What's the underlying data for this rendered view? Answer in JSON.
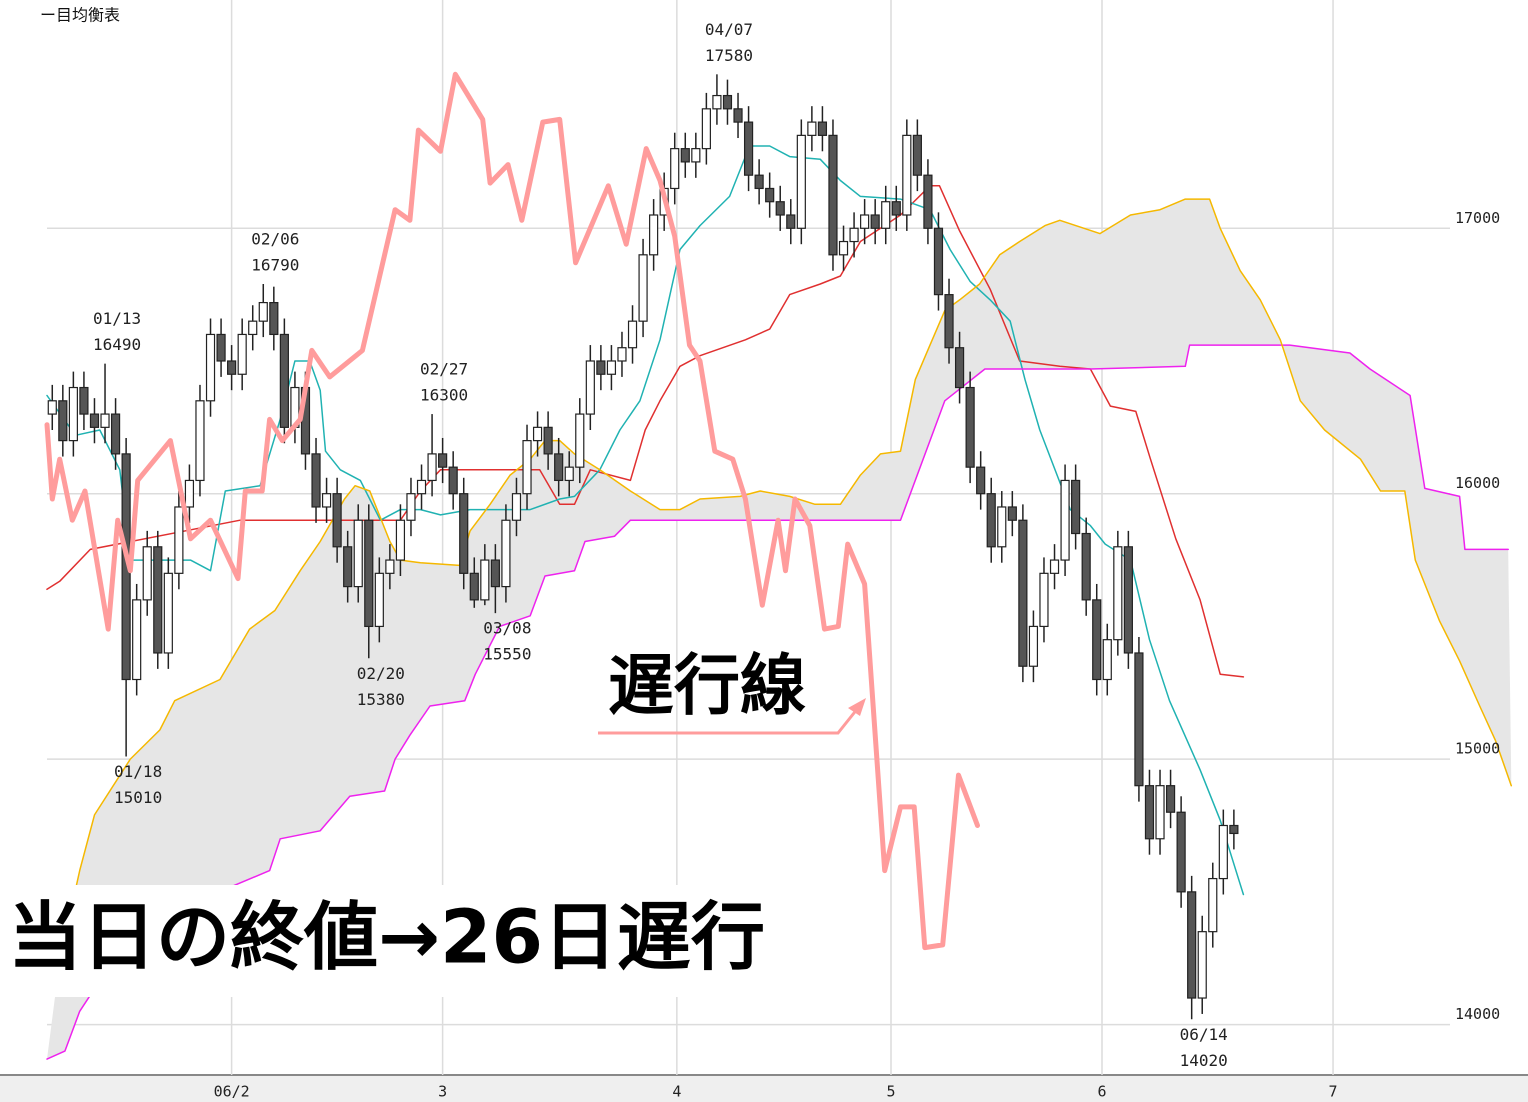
{
  "chart_data": {
    "type": "candlestick",
    "title": "ー目均衡表",
    "caption": "当日の終値→26日遅行",
    "lagging_label": "遅行線",
    "xlim": [
      0,
      140
    ],
    "ylim": [
      13810,
      17860
    ],
    "xticks": [
      {
        "value": 17.5,
        "label": "06/2"
      },
      {
        "value": 37.5,
        "label": "3"
      },
      {
        "value": 59.7,
        "label": "4"
      },
      {
        "value": 80,
        "label": "5"
      },
      {
        "value": 100,
        "label": "6"
      },
      {
        "value": 121.9,
        "label": "7"
      }
    ],
    "yticks": [
      14000,
      15000,
      16000,
      17000
    ],
    "grid": true,
    "up_color": "#ffffff",
    "down_color": "#555555",
    "wick_color": "#222222",
    "cloud_color": "#e6e6e6",
    "candles": {
      "open": [
        16300,
        16350,
        16200,
        16400,
        16300,
        16250,
        16300,
        16150,
        15300,
        15600,
        15800,
        15400,
        15700,
        15950,
        16050,
        16350,
        16600,
        16500,
        16450,
        16600,
        16650,
        16720,
        16600,
        16250,
        16400,
        16150,
        15950,
        16000,
        15800,
        15650,
        15900,
        15500,
        15700,
        15750,
        15900,
        16000,
        16050,
        16150,
        16100,
        16000,
        15700,
        15600,
        15750,
        15650,
        15900,
        16000,
        16200,
        16250,
        16150,
        16050,
        16100,
        16300,
        16500,
        16450,
        16500,
        16550,
        16650,
        16900,
        17050,
        17150,
        17300,
        17250,
        17300,
        17450,
        17500,
        17450,
        17400,
        17200,
        17150,
        17100,
        17050,
        17000,
        17350,
        17400,
        17350,
        16900,
        16950,
        17000,
        17050,
        17000,
        17100,
        17050,
        17350,
        17200,
        17000,
        16750,
        16550,
        16400,
        16100,
        16000,
        15800,
        15950,
        15900,
        15350,
        15500,
        15700,
        15750,
        16050,
        15850,
        15600,
        15300,
        15450,
        15800,
        15400,
        14900,
        14700,
        14900,
        14800,
        14500,
        14100,
        14350,
        14550,
        14750
      ],
      "high": [
        16410,
        16410,
        16460,
        16460,
        16360,
        16490,
        16360,
        16210,
        15660,
        15860,
        15860,
        15760,
        16010,
        16110,
        16410,
        16660,
        16660,
        16560,
        16660,
        16710,
        16790,
        16780,
        16660,
        16460,
        16460,
        16210,
        16060,
        16060,
        15860,
        15960,
        15960,
        15760,
        15810,
        15960,
        16060,
        16110,
        16300,
        16210,
        16160,
        16060,
        15760,
        15810,
        15810,
        15960,
        16060,
        16260,
        16310,
        16310,
        16210,
        16160,
        16360,
        16560,
        16560,
        16560,
        16610,
        16710,
        16960,
        17110,
        17210,
        17360,
        17360,
        17360,
        17510,
        17580,
        17560,
        17510,
        17460,
        17260,
        17210,
        17160,
        17110,
        17410,
        17460,
        17460,
        17410,
        17010,
        17060,
        17110,
        17110,
        17160,
        17160,
        17410,
        17410,
        17260,
        17060,
        16810,
        16610,
        16460,
        16160,
        16060,
        16010,
        16010,
        15960,
        15560,
        15760,
        15810,
        16110,
        16110,
        15910,
        15660,
        15510,
        15860,
        15860,
        15460,
        14960,
        14960,
        14960,
        14860,
        14560,
        14410,
        14610,
        14810,
        14810
      ],
      "low": [
        16240,
        16140,
        16140,
        16240,
        16190,
        16190,
        16090,
        15010,
        15240,
        15540,
        15340,
        15340,
        15640,
        15890,
        15990,
        16290,
        16440,
        16390,
        16390,
        16540,
        16590,
        16540,
        16190,
        16190,
        16090,
        15890,
        15890,
        15740,
        15590,
        15590,
        15380,
        15440,
        15640,
        15690,
        15840,
        15940,
        15990,
        16040,
        15940,
        15640,
        15570,
        15580,
        15550,
        15590,
        15840,
        15940,
        16140,
        16090,
        15990,
        15990,
        16040,
        16240,
        16390,
        16390,
        16440,
        16490,
        16590,
        16840,
        16990,
        17090,
        17190,
        17190,
        17240,
        17390,
        17390,
        17340,
        17140,
        17090,
        17040,
        16990,
        16940,
        16940,
        17290,
        17290,
        16840,
        16840,
        16890,
        16940,
        16940,
        16940,
        16990,
        16990,
        17140,
        16940,
        16690,
        16490,
        16340,
        16040,
        15940,
        15740,
        15740,
        15840,
        15290,
        15290,
        15440,
        15640,
        15690,
        15790,
        15540,
        15240,
        15240,
        15390,
        15340,
        14840,
        14640,
        14640,
        14740,
        14440,
        14020,
        14040,
        14290,
        14490,
        14660
      ],
      "close": [
        16350,
        16200,
        16400,
        16300,
        16250,
        16300,
        16150,
        15300,
        15600,
        15800,
        15400,
        15700,
        15950,
        16050,
        16350,
        16600,
        16500,
        16450,
        16600,
        16650,
        16720,
        16600,
        16250,
        16400,
        16150,
        15950,
        16000,
        15800,
        15650,
        15900,
        15500,
        15700,
        15750,
        15900,
        16000,
        16050,
        16150,
        16100,
        16000,
        15700,
        15600,
        15750,
        15650,
        15900,
        16000,
        16200,
        16250,
        16150,
        16050,
        16100,
        16300,
        16500,
        16450,
        16500,
        16550,
        16650,
        16900,
        17050,
        17150,
        17300,
        17250,
        17300,
        17450,
        17500,
        17450,
        17400,
        17200,
        17150,
        17100,
        17050,
        17000,
        17350,
        17400,
        17350,
        16900,
        16950,
        17000,
        17050,
        17000,
        17100,
        17050,
        17350,
        17200,
        17000,
        16750,
        16550,
        16400,
        16100,
        16000,
        15800,
        15950,
        15900,
        15350,
        15500,
        15700,
        15750,
        16050,
        15850,
        15600,
        15300,
        15450,
        15800,
        15400,
        14900,
        14700,
        14900,
        14800,
        14500,
        14100,
        14350,
        14550,
        14750,
        14720
      ]
    },
    "series": [
      {
        "color": "#ff9c9c",
        "width": 5,
        "x": [
          0,
          0.5,
          1.2,
          2.4,
          3.6,
          5.8,
          6.7,
          7.9,
          8.6,
          11.7,
          13.6,
          15.5,
          18.1,
          18.8,
          20.4,
          21.1,
          22.3,
          24,
          25.1,
          26.8,
          29.9,
          33,
          34.4,
          35.2,
          37.3,
          38.7,
          41.3,
          42,
          43.7,
          45,
          47,
          48.6,
          50.1,
          53.2,
          54.9,
          56.8,
          58.1,
          59.5,
          60.9,
          61.9,
          63.3,
          65,
          66.2,
          67.8,
          69.3,
          70,
          70.9,
          72.3,
          73.7,
          75,
          75.9,
          77.5,
          79.4,
          80.9,
          82.2,
          83.2,
          84.9,
          86.4,
          88.2
        ],
        "values": [
          16260,
          15980,
          16130,
          15900,
          16010,
          15490,
          15900,
          15710,
          16050,
          16200,
          15830,
          15900,
          15680,
          16010,
          16010,
          16280,
          16200,
          16280,
          16540,
          16440,
          16540,
          17070,
          17030,
          17370,
          17290,
          17580,
          17410,
          17170,
          17240,
          17030,
          17400,
          17410,
          16870,
          17160,
          16940,
          17300,
          17180,
          16970,
          16560,
          16500,
          16160,
          16130,
          15980,
          15580,
          15900,
          15710,
          15980,
          15880,
          15490,
          15500,
          15810,
          15660,
          14580,
          14820,
          14820,
          14290,
          14300,
          14940,
          14750
        ]
      },
      {
        "color": "#20b2b2",
        "width": 1.5,
        "x": [
          0,
          2.7,
          5,
          6.9,
          7.9,
          13.6,
          15.5,
          16.9,
          20.2,
          22.1,
          23.5,
          24.9,
          25.9,
          26.4,
          27.8,
          29.7,
          31.6,
          33.5,
          35.4,
          37.3,
          40.1,
          42,
          43.9,
          45.8,
          48.6,
          50,
          52.4,
          54.3,
          56.2,
          58.1,
          60,
          61.9,
          64.7,
          66.6,
          68.5,
          70.4,
          73.3,
          75.2,
          77.1,
          80.9,
          83.7,
          85.6,
          87.5,
          89.4,
          91.3,
          92.7,
          94.1,
          97,
          98.9,
          100.3,
          102.7,
          104.5,
          106.4,
          109.3,
          111.2,
          113.4
        ],
        "values": [
          16370,
          16220,
          16240,
          16090,
          15750,
          15750,
          15710,
          16010,
          16030,
          16280,
          16500,
          16500,
          16390,
          16160,
          16090,
          16050,
          15900,
          15940,
          15940,
          15920,
          15940,
          15940,
          15940,
          15940,
          15980,
          15990,
          16090,
          16240,
          16350,
          16580,
          16920,
          17010,
          17120,
          17310,
          17310,
          17270,
          17260,
          17180,
          17120,
          17110,
          17070,
          16920,
          16800,
          16730,
          16650,
          16430,
          16240,
          15940,
          15880,
          15810,
          15750,
          15450,
          15220,
          14960,
          14770,
          14490
        ]
      },
      {
        "color": "#e03030",
        "width": 1.5,
        "x": [
          0,
          1.2,
          4.1,
          18.3,
          25.9,
          31.6,
          33.5,
          35.4,
          37.3,
          46.7,
          48.6,
          50,
          51.5,
          55.3,
          56.7,
          58.1,
          60,
          61.9,
          66.2,
          68.5,
          70.4,
          73.3,
          75.2,
          77.1,
          80.9,
          83.7,
          84.6,
          86.5,
          89.4,
          92.2,
          96,
          98.9,
          100.8,
          103.2,
          104.6,
          107,
          109.3,
          111.2,
          113.4
        ],
        "values": [
          15640,
          15670,
          15790,
          15900,
          15900,
          15900,
          15900,
          16010,
          16090,
          16090,
          15960,
          15960,
          16090,
          16050,
          16240,
          16350,
          16480,
          16520,
          16580,
          16620,
          16750,
          16790,
          16820,
          16950,
          17050,
          17160,
          17160,
          16990,
          16770,
          16500,
          16480,
          16470,
          16330,
          16310,
          16130,
          15830,
          15600,
          15320,
          15310
        ]
      },
      {
        "color": "#f5b800",
        "width": 1.5,
        "x": [
          1.2,
          3.1,
          4.5,
          7.9,
          10.7,
          12.1,
          16.4,
          19.2,
          21.6,
          24,
          25.9,
          28.2,
          29.2,
          30.6,
          32.5,
          33.5,
          35.4,
          39.1,
          40.1,
          42,
          43.9,
          45.8,
          47.2,
          48.6,
          50,
          52.4,
          55.3,
          58.1,
          60,
          61.9,
          65.7,
          67.6,
          70.4,
          72.8,
          75.2,
          77.1,
          79,
          80.9,
          82.3,
          83.7,
          85.1,
          86.5,
          88.4,
          90.3,
          92.2,
          94.6,
          96,
          99.8,
          102.7,
          105.5,
          107.9,
          110.2,
          111.2,
          113.1,
          115,
          116.9,
          118.8,
          121.1,
          124.5,
          126.4,
          128.7,
          129.7,
          132,
          133.9,
          135.8,
          137.3,
          138.8
        ],
        "values": [
          14240,
          14580,
          14790,
          15000,
          15110,
          15220,
          15300,
          15490,
          15560,
          15710,
          15820,
          15980,
          16030,
          16010,
          15820,
          15750,
          15740,
          15730,
          15860,
          15960,
          16070,
          16130,
          16200,
          16200,
          16150,
          16090,
          16010,
          15940,
          15940,
          15980,
          15990,
          16010,
          15990,
          15960,
          15960,
          16070,
          16150,
          16160,
          16430,
          16560,
          16690,
          16730,
          16790,
          16900,
          16950,
          17010,
          17030,
          16980,
          17050,
          17070,
          17110,
          17110,
          17000,
          16840,
          16730,
          16580,
          16350,
          16240,
          16130,
          16010,
          16010,
          15750,
          15520,
          15370,
          15200,
          15070,
          14900
        ]
      },
      {
        "color": "#ee22ee",
        "width": 1.5,
        "x": [
          0,
          1.7,
          3.1,
          6.9,
          14.5,
          21.1,
          22.1,
          25.9,
          28.7,
          32,
          33,
          34.4,
          36.3,
          39.6,
          40.6,
          42.9,
          45.8,
          47.2,
          50,
          51,
          53.8,
          55.3,
          80.9,
          85.1,
          88.9,
          98.9,
          107.9,
          108.3,
          117.8,
          123.5,
          125.4,
          129.2,
          130.6,
          133.9,
          134.4,
          138.5
        ],
        "values": [
          13870,
          13900,
          14050,
          14280,
          14470,
          14580,
          14700,
          14730,
          14860,
          14880,
          15000,
          15090,
          15200,
          15220,
          15320,
          15500,
          15540,
          15690,
          15710,
          15820,
          15840,
          15900,
          15900,
          16350,
          16470,
          16470,
          16480,
          16560,
          16560,
          16530,
          16470,
          16370,
          16020,
          15990,
          15790,
          15790
        ]
      }
    ],
    "annotations": [
      {
        "date": "01/13",
        "price": 16490,
        "at": "high"
      },
      {
        "date": "01/18",
        "price": 15010,
        "at": "low"
      },
      {
        "date": "02/06",
        "price": 16790,
        "at": "high"
      },
      {
        "date": "02/20",
        "price": 15380,
        "at": "low"
      },
      {
        "date": "02/27",
        "price": 16300,
        "at": "high"
      },
      {
        "date": "03/08",
        "price": 15550,
        "at": "low"
      },
      {
        "date": "04/07",
        "price": 17580,
        "at": "high"
      },
      {
        "date": "06/14",
        "price": 14020,
        "at": "low"
      }
    ]
  }
}
